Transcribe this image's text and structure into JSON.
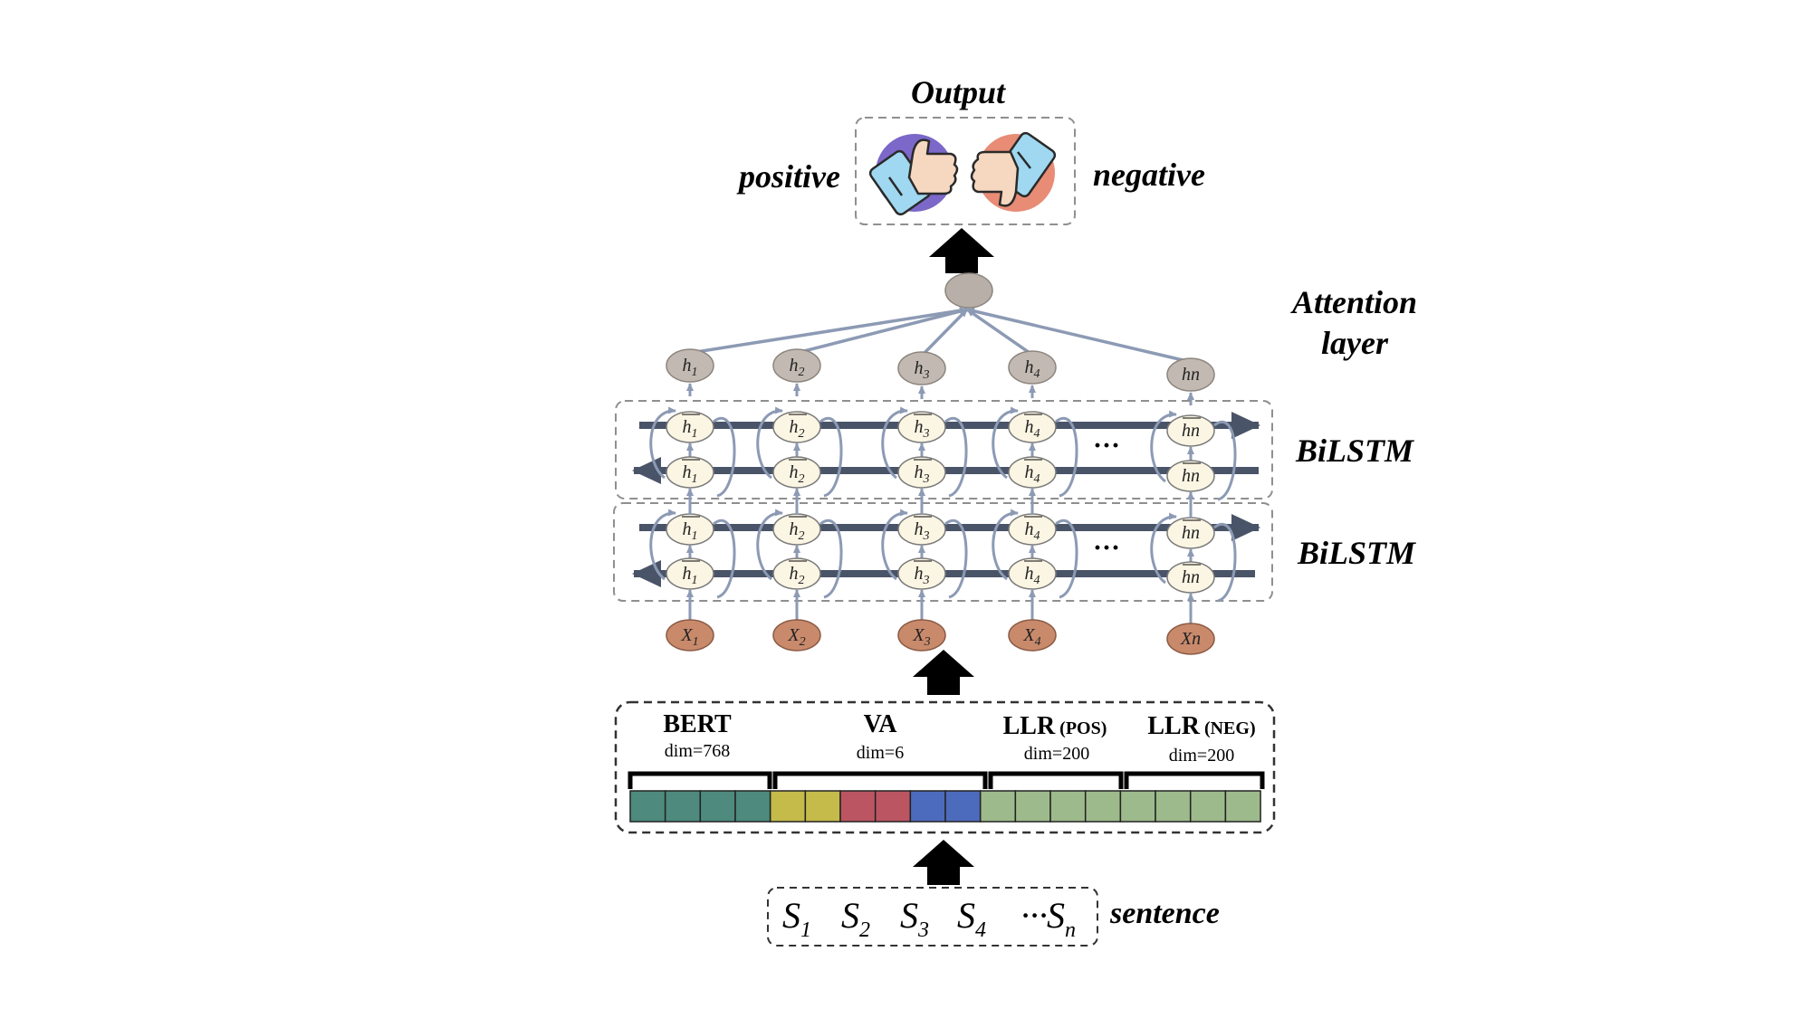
{
  "colors": {
    "attention_node": "#b8b0a8",
    "h_node": "#c2bab2",
    "cell_node": "#fbf5e3",
    "x_node": "#c98a6c",
    "arrow_dark": "#4a5468",
    "arrow_light": "#8c9ab4",
    "box_dash": "#8f8f8f",
    "bert_cell": "#4e8a7e",
    "va_cells": [
      "#c4bb4a",
      "#c4bb4a",
      "#bb5562",
      "#bb5562",
      "#4d6bbc",
      "#4d6bbc"
    ],
    "llr_cell": "#9dba8c"
  },
  "output": {
    "title": "Output",
    "positive_label": "positive",
    "negative_label": "negative",
    "positive_icon": "thumbs-up-icon",
    "negative_icon": "thumbs-down-icon"
  },
  "attention": {
    "label_line1": "Attention",
    "label_line2": "layer"
  },
  "bilstm": {
    "label_upper": "BiLSTM",
    "label_lower": "BiLSTM",
    "ellipsis": "···"
  },
  "hidden_nodes": [
    "h1",
    "h2",
    "h3",
    "h4",
    "hn"
  ],
  "input_nodes": [
    "X1",
    "X2",
    "X3",
    "X4",
    "Xn"
  ],
  "embedding": {
    "segments": [
      {
        "name": "BERT",
        "suffix": "",
        "dim": "dim=768"
      },
      {
        "name": "VA",
        "suffix": "",
        "dim": "dim=6"
      },
      {
        "name": "LLR",
        "suffix": " (POS)",
        "dim": "dim=200"
      },
      {
        "name": "LLR",
        "suffix": " (NEG)",
        "dim": "dim=200"
      }
    ]
  },
  "sentence": {
    "label": "sentence",
    "tokens": [
      {
        "base": "S",
        "sub": "1"
      },
      {
        "base": "S",
        "sub": "2"
      },
      {
        "base": "S",
        "sub": "3"
      },
      {
        "base": "S",
        "sub": "4"
      },
      {
        "base": "···",
        "sub": ""
      },
      {
        "base": "S",
        "sub": "n"
      }
    ]
  }
}
